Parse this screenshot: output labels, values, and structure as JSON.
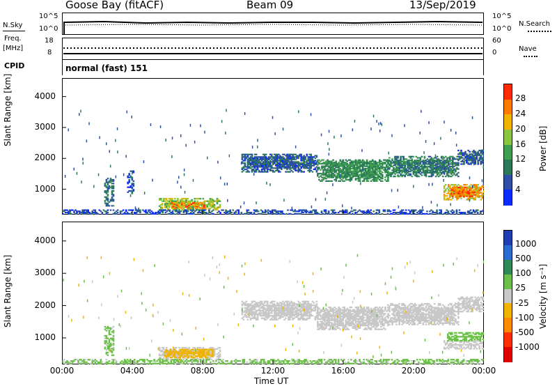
{
  "header": {
    "station": "Goose Bay (fitACF)",
    "beam": "Beam 09",
    "date": "13/Sep/2019"
  },
  "noise_panel": {
    "left_label": "N.Sky",
    "right_label": "N.Search",
    "left_ticks": [
      "10^5",
      "10^0"
    ],
    "right_ticks": [
      "10^5",
      "10^0"
    ],
    "right_legend_style": "dotted"
  },
  "freq_panel": {
    "left_label_1": "Freq.",
    "left_label_2": "[MHz]",
    "left_ticks": [
      "18",
      "8"
    ],
    "right_label": "Nave",
    "right_ticks": [
      "60",
      "0"
    ]
  },
  "cpid": {
    "label": "CPID",
    "value": "normal (fast) 151"
  },
  "colors": {
    "power": [
      "#0a2bff",
      "#2e4fa6",
      "#2a7a5a",
      "#3f9e4f",
      "#8cc63f",
      "#f0b400",
      "#ff7a00",
      "#ff2a00",
      "#e00000"
    ],
    "velocity": [
      "#1f3fb0",
      "#2a6bd0",
      "#2e8b57",
      "#6cc04a",
      "#c8c8c8",
      "#f0b400",
      "#ff8c00",
      "#ff3000",
      "#e00000"
    ]
  },
  "chart_data": [
    {
      "type": "heatmap",
      "name": "power",
      "ylabel": "Slant Range [km]",
      "xlabel": "",
      "y_ticks": [
        "1000",
        "2000",
        "3000",
        "4000"
      ],
      "y_range": [
        180,
        4600
      ],
      "x_ticks": [
        "00:00",
        "04:00",
        "08:00",
        "12:00",
        "16:00",
        "20:00",
        "00:00"
      ],
      "x_range_hours": [
        0,
        24
      ],
      "colorbar": {
        "label": "Power [dB]",
        "ticks": [
          "4",
          "8",
          "12",
          "16",
          "20",
          "24",
          "28"
        ],
        "range": [
          0,
          30
        ]
      },
      "regions": [
        {
          "t0": 10.2,
          "t1": 14.5,
          "r0": 1550,
          "r1": 2150,
          "value": 7
        },
        {
          "t0": 14.5,
          "t1": 18.5,
          "r0": 1250,
          "r1": 1950,
          "value": 12
        },
        {
          "t0": 18.5,
          "t1": 22.5,
          "r0": 1400,
          "r1": 2050,
          "value": 10
        },
        {
          "t0": 22.5,
          "t1": 24.0,
          "r0": 1800,
          "r1": 2250,
          "value": 7
        },
        {
          "t0": 5.5,
          "t1": 9.0,
          "r0": 320,
          "r1": 720,
          "value": 18
        },
        {
          "t0": 6.2,
          "t1": 8.2,
          "r0": 380,
          "r1": 580,
          "value": 26
        },
        {
          "t0": 21.7,
          "t1": 24.0,
          "r0": 650,
          "r1": 1150,
          "value": 22
        },
        {
          "t0": 22.1,
          "t1": 23.8,
          "r0": 760,
          "r1": 1050,
          "value": 27
        },
        {
          "t0": 2.4,
          "t1": 2.9,
          "r0": 450,
          "r1": 1350,
          "value": 9
        },
        {
          "t0": 3.7,
          "t1": 4.1,
          "r0": 850,
          "r1": 1600,
          "value": 6
        },
        {
          "t0": 0.0,
          "t1": 24.0,
          "r0": 190,
          "r1": 330,
          "value": 6
        }
      ]
    },
    {
      "type": "heatmap",
      "name": "velocity",
      "ylabel": "Slant Range [km]",
      "xlabel": "Time UT",
      "y_ticks": [
        "1000",
        "2000",
        "3000",
        "4000"
      ],
      "y_range": [
        180,
        4600
      ],
      "x_ticks": [
        "00:00",
        "04:00",
        "08:00",
        "12:00",
        "16:00",
        "20:00",
        "00:00"
      ],
      "x_range_hours": [
        0,
        24
      ],
      "colorbar": {
        "label": "Velocity [m s⁻¹]",
        "ticks": [
          "1000",
          "500",
          "100",
          "25",
          "-25",
          "-100",
          "-500",
          "-1000"
        ]
      },
      "regions": [
        {
          "t0": 10.2,
          "t1": 14.5,
          "r0": 1550,
          "r1": 2150,
          "value": 0
        },
        {
          "t0": 14.5,
          "t1": 18.5,
          "r0": 1250,
          "r1": 1950,
          "value": 0
        },
        {
          "t0": 18.5,
          "t1": 22.5,
          "r0": 1400,
          "r1": 2050,
          "value": 0
        },
        {
          "t0": 22.5,
          "t1": 24.0,
          "r0": 1800,
          "r1": 2250,
          "value": 0
        },
        {
          "t0": 5.5,
          "t1": 9.0,
          "r0": 320,
          "r1": 720,
          "value": 0
        },
        {
          "t0": 5.8,
          "t1": 8.6,
          "r0": 380,
          "r1": 650,
          "value": -60
        },
        {
          "t0": 21.7,
          "t1": 24.0,
          "r0": 650,
          "r1": 900,
          "value": 0
        },
        {
          "t0": 21.9,
          "t1": 24.0,
          "r0": 900,
          "r1": 1150,
          "value": 60
        },
        {
          "t0": 2.4,
          "t1": 2.9,
          "r0": 450,
          "r1": 1350,
          "value": 40
        },
        {
          "t0": 0.0,
          "t1": 24.0,
          "r0": 190,
          "r1": 330,
          "value": 40
        }
      ]
    }
  ]
}
